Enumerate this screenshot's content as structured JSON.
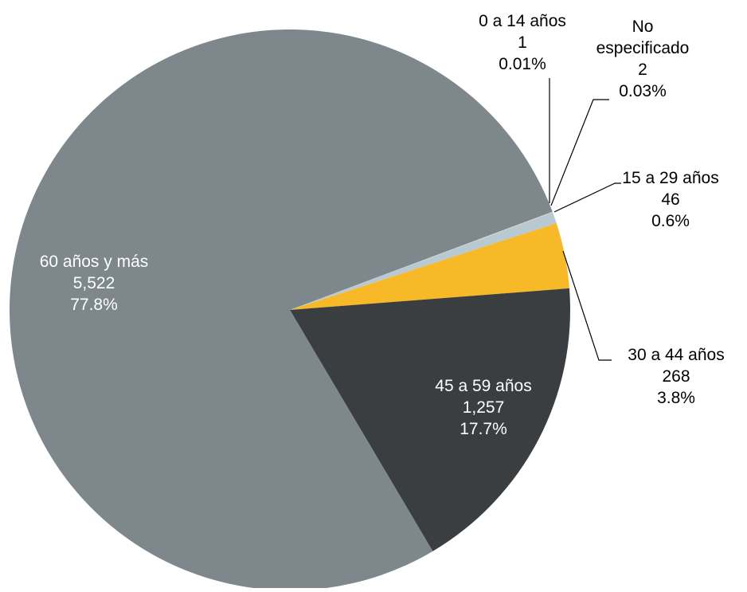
{
  "chart_data": {
    "type": "pie",
    "title": "",
    "units": "",
    "start_angle_deg": 69.5,
    "direction": "clockwise",
    "slices": [
      {
        "key": "0-14",
        "label": "0 a 14 años",
        "value": 1,
        "value_text": "1",
        "percent": 0.01,
        "percent_text": "0.01%",
        "color": "#e7c16e",
        "label_position": "outside",
        "leader_line": true
      },
      {
        "key": "ne",
        "label": "No especificado",
        "value": 2,
        "value_text": "2",
        "percent": 0.03,
        "percent_text": "0.03%",
        "color": "#d7d7d7",
        "label_position": "outside",
        "leader_line": true
      },
      {
        "key": "15-29",
        "label": "15 a 29 años",
        "value": 46,
        "value_text": "46",
        "percent": 0.6,
        "percent_text": "0.6%",
        "color": "#b8c9d1",
        "label_position": "outside",
        "leader_line": true
      },
      {
        "key": "30-44",
        "label": "30 a 44 años",
        "value": 268,
        "value_text": "268",
        "percent": 3.8,
        "percent_text": "3.8%",
        "color": "#f8b929",
        "label_position": "outside",
        "leader_line": true
      },
      {
        "key": "45-59",
        "label": "45 a 59 años",
        "value": 1257,
        "value_text": "1,257",
        "percent": 17.7,
        "percent_text": "17.7%",
        "color": "#3b3e41",
        "label_position": "inside",
        "leader_line": false
      },
      {
        "key": "60plus",
        "label": "60 años y más",
        "value": 5522,
        "value_text": "5,522",
        "percent": 77.8,
        "percent_text": "77.8%",
        "color": "#7d878c",
        "label_position": "inside",
        "leader_line": false
      }
    ]
  }
}
